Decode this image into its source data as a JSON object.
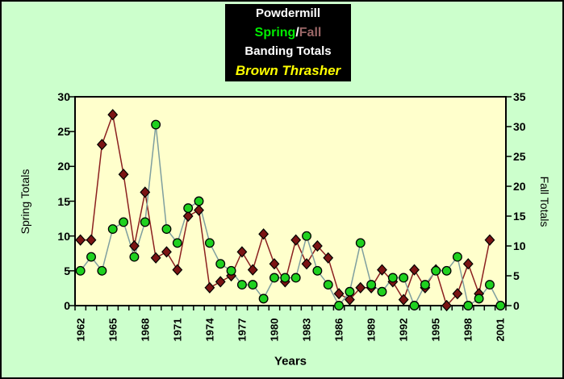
{
  "title_box": {
    "line1": "Powdermill",
    "spring": "Spring",
    "separator": "/",
    "fall": "Fall",
    "line3": "Banding Totals",
    "line4": "Brown Thrasher"
  },
  "colors": {
    "page_bg": "#ccffcc",
    "plot_bg": "#ffffcc",
    "title_bg": "#000000",
    "title_text": "#ffffff",
    "spring_title_text": "#00ee00",
    "fall_title_text": "#996666",
    "thrasher_title_text": "#ffff00",
    "axis": "#000000"
  },
  "chart_data": {
    "type": "line",
    "title": "Powdermill Spring/Fall Banding Totals - Brown Thrasher",
    "xlabel": "Years",
    "x": [
      1962,
      1963,
      1964,
      1965,
      1966,
      1967,
      1968,
      1969,
      1970,
      1971,
      1972,
      1973,
      1974,
      1975,
      1976,
      1977,
      1978,
      1979,
      1980,
      1981,
      1982,
      1983,
      1984,
      1985,
      1986,
      1987,
      1988,
      1989,
      1990,
      1991,
      1992,
      1993,
      1994,
      1995,
      1996,
      1997,
      1998,
      1999,
      2000,
      2001
    ],
    "x_tick_labels": [
      "1962",
      "1965",
      "1968",
      "1971",
      "1974",
      "1977",
      "1980",
      "1983",
      "1986",
      "1989",
      "1992",
      "1995",
      "1998",
      "2001"
    ],
    "left_axis": {
      "label": "Spring Totals",
      "min": 0,
      "max": 30,
      "ticks": [
        0,
        5,
        10,
        15,
        20,
        25,
        30
      ]
    },
    "right_axis": {
      "label": "Fall Totals",
      "min": 0,
      "max": 35,
      "ticks": [
        0,
        5,
        10,
        15,
        20,
        25,
        30,
        35
      ]
    },
    "legend_position": "none",
    "grid": false,
    "series": [
      {
        "name": "Fall",
        "axis": "right",
        "marker": "diamond",
        "line_color": "#8b1f1f",
        "marker_color": "#7a1414",
        "values": [
          11,
          11,
          27,
          32,
          22,
          10,
          19,
          8,
          9,
          6,
          15,
          16,
          3,
          4,
          5,
          9,
          6,
          12,
          7,
          4,
          11,
          7,
          10,
          8,
          2,
          1,
          3,
          3,
          6,
          4,
          1,
          6,
          3,
          6,
          0,
          2,
          7,
          2,
          11,
          null
        ]
      },
      {
        "name": "Spring",
        "axis": "left",
        "marker": "circle",
        "line_color": "#7f9f9f",
        "marker_color": "#1fd11f",
        "values": [
          5,
          7,
          5,
          11,
          12,
          7,
          12,
          26,
          11,
          9,
          14,
          15,
          9,
          6,
          5,
          3,
          3,
          1,
          4,
          4,
          4,
          10,
          5,
          3,
          0,
          2,
          9,
          3,
          2,
          4,
          4,
          0,
          3,
          5,
          5,
          7,
          0,
          1,
          3,
          0
        ]
      }
    ]
  }
}
